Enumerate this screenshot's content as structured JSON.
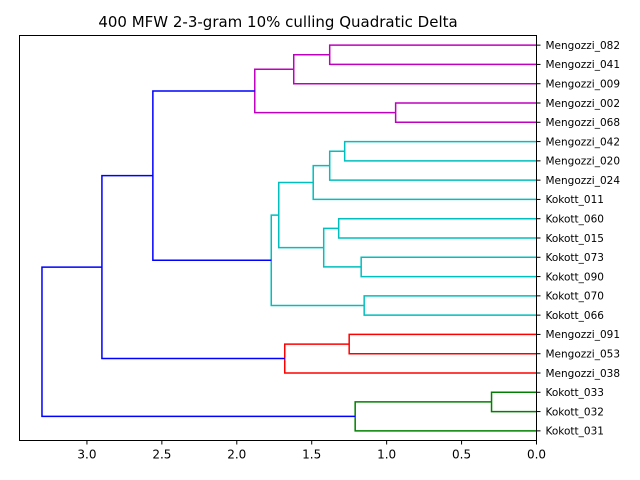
{
  "chart_data": {
    "type": "dendrogram",
    "title": "400 MFW 2-3-gram 10% culling Quadratic Delta",
    "orientation": "left",
    "xlim": [
      3.45,
      0.0
    ],
    "xticks": [
      3.0,
      2.5,
      2.0,
      1.5,
      1.0,
      0.5,
      0.0
    ],
    "xtick_labels": [
      "3.0",
      "2.5",
      "2.0",
      "1.5",
      "1.0",
      "0.5",
      "0.0"
    ],
    "colors": {
      "magenta": "#bf00bf",
      "cyan": "#00bfbf",
      "red": "#ff0000",
      "green": "#008000",
      "blue": "#0000ff"
    },
    "leaves": [
      "Mengozzi_082",
      "Mengozzi_041",
      "Mengozzi_009",
      "Mengozzi_002",
      "Mengozzi_068",
      "Mengozzi_042",
      "Mengozzi_020",
      "Mengozzi_024",
      "Kokott_011",
      "Kokott_060",
      "Kokott_015",
      "Kokott_073",
      "Kokott_090",
      "Kokott_070",
      "Kokott_066",
      "Mengozzi_091",
      "Mengozzi_053",
      "Mengozzi_038",
      "Kokott_033",
      "Kokott_032",
      "Kokott_031"
    ],
    "merges": [
      {
        "a": 0,
        "b": 1,
        "height": 1.38,
        "color": "magenta"
      },
      {
        "a": 21,
        "b": 2,
        "height": 1.62,
        "color": "magenta"
      },
      {
        "a": 3,
        "b": 4,
        "height": 0.94,
        "color": "magenta"
      },
      {
        "a": 22,
        "b": 23,
        "height": 1.88,
        "color": "magenta"
      },
      {
        "a": 5,
        "b": 6,
        "height": 1.28,
        "color": "cyan"
      },
      {
        "a": 25,
        "b": 7,
        "height": 1.38,
        "color": "cyan"
      },
      {
        "a": 26,
        "b": 8,
        "height": 1.49,
        "color": "cyan"
      },
      {
        "a": 9,
        "b": 10,
        "height": 1.32,
        "color": "cyan"
      },
      {
        "a": 11,
        "b": 12,
        "height": 1.17,
        "color": "cyan"
      },
      {
        "a": 28,
        "b": 29,
        "height": 1.42,
        "color": "cyan"
      },
      {
        "a": 27,
        "b": 30,
        "height": 1.72,
        "color": "cyan"
      },
      {
        "a": 13,
        "b": 14,
        "height": 1.15,
        "color": "cyan"
      },
      {
        "a": 31,
        "b": 32,
        "height": 1.77,
        "color": "cyan"
      },
      {
        "a": 24,
        "b": 33,
        "height": 2.56,
        "color": "blue"
      },
      {
        "a": 15,
        "b": 16,
        "height": 1.25,
        "color": "red"
      },
      {
        "a": 35,
        "b": 17,
        "height": 1.68,
        "color": "red"
      },
      {
        "a": 34,
        "b": 36,
        "height": 2.9,
        "color": "blue"
      },
      {
        "a": 18,
        "b": 19,
        "height": 0.3,
        "color": "green"
      },
      {
        "a": 38,
        "b": 20,
        "height": 1.21,
        "color": "green"
      },
      {
        "a": 37,
        "b": 39,
        "height": 3.3,
        "color": "blue"
      }
    ]
  }
}
